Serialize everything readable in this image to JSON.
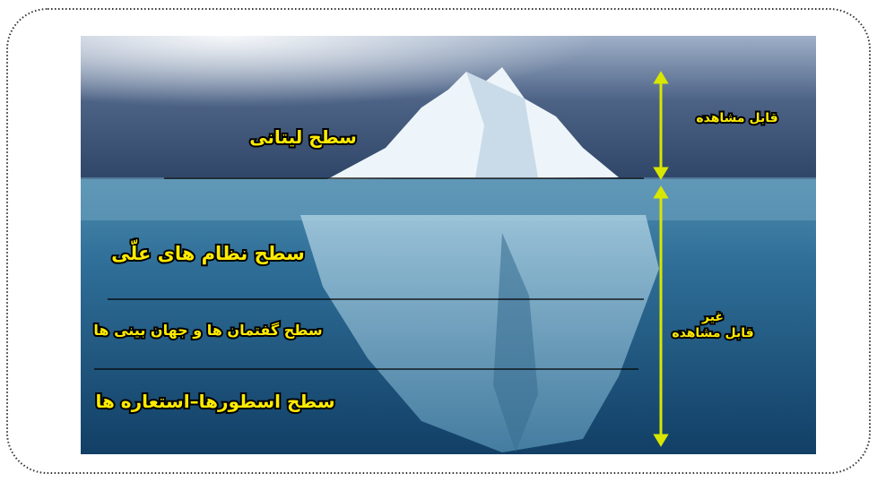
{
  "layers": [
    {
      "label": "سطح لیتانی"
    },
    {
      "label": "سطح نظام های علّی"
    },
    {
      "label": "سطح گفتمان ها و جهان بینی ها"
    },
    {
      "label": "سطح اسطورها–استعاره ها"
    }
  ],
  "visible": {
    "label": "قابل مشاهده"
  },
  "invisible": {
    "line1": "غیر",
    "line2": "قابل مشاهده"
  }
}
